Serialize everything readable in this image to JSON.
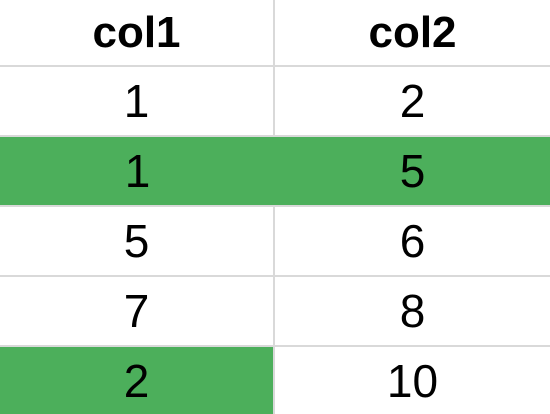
{
  "table": {
    "columns": [
      "col1",
      "col2"
    ],
    "rows": [
      [
        "1",
        "2"
      ],
      [
        "1",
        "5"
      ],
      [
        "5",
        "6"
      ],
      [
        "7",
        "8"
      ],
      [
        "2",
        "10"
      ]
    ],
    "highlight_color": "#4caf5b",
    "highlighted_cells": [
      [
        1,
        0
      ],
      [
        1,
        1
      ],
      [
        4,
        0
      ]
    ]
  }
}
